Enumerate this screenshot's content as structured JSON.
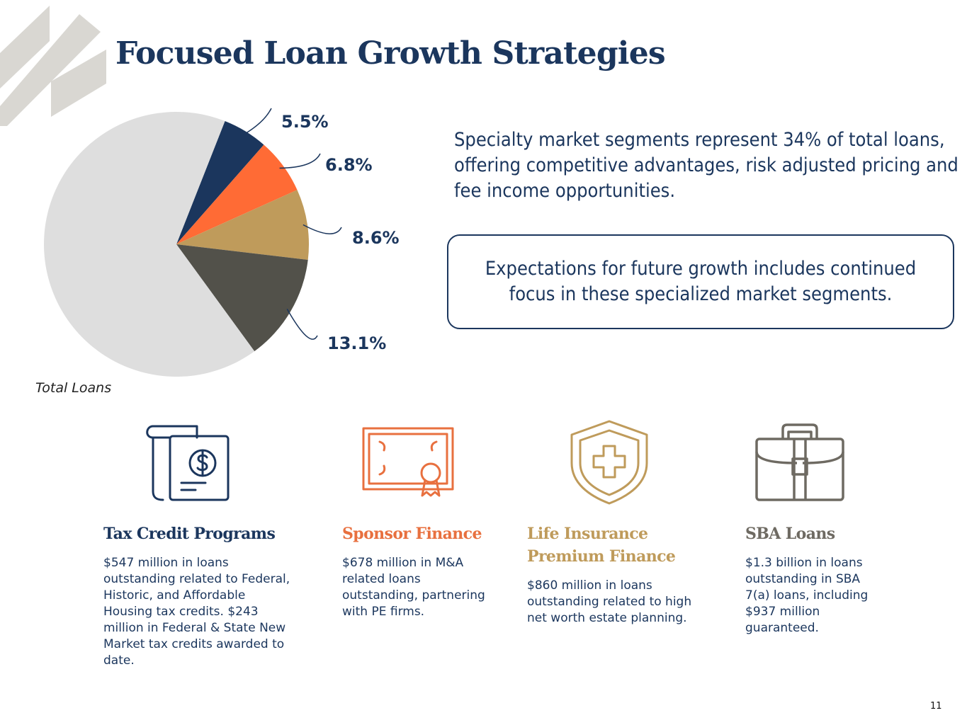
{
  "page": {
    "title": "Focused Loan Growth Strategies",
    "intro": "Specialty market segments represent 34% of total loans, offering competitive advantages, risk adjusted pricing and fee income opportunities.",
    "callout": "Expectations for future growth includes continued focus in these specialized market segments.",
    "page_number": "11"
  },
  "chart_data": {
    "type": "pie",
    "title": "",
    "caption": "Total Loans",
    "slices": [
      {
        "label": "5.5%",
        "value": 5.5,
        "color": "#1b365d"
      },
      {
        "label": "6.8%",
        "value": 6.8,
        "color": "#ff6b35"
      },
      {
        "label": "8.6%",
        "value": 8.6,
        "color": "#bf9b5b"
      },
      {
        "label": "13.1%",
        "value": 13.1,
        "color": "#52514a"
      },
      {
        "label": "",
        "value": 66.0,
        "color": "#dedede"
      }
    ]
  },
  "segments": [
    {
      "icon": "tax-credit-document-icon",
      "title": "Tax Credit Programs",
      "color": "#1b365d",
      "text": "$547 million in loans outstanding related to Federal, Historic, and Affordable Housing tax credits. $243 million in Federal & State New Market tax credits awarded to date."
    },
    {
      "icon": "certificate-icon",
      "title": "Sponsor Finance",
      "color": "#e8703f",
      "text": "$678 million in M&A related loans outstanding, partnering with PE firms."
    },
    {
      "icon": "medical-shield-icon",
      "title": "Life Insurance Premium Finance",
      "color": "#bf9b5b",
      "text": "$860 million in loans outstanding related to high net worth estate planning."
    },
    {
      "icon": "briefcase-icon",
      "title": "SBA Loans",
      "color": "#6e6a62",
      "text": "$1.3 billion in loans outstanding in SBA 7(a) loans, including $937 million guaranteed."
    }
  ]
}
